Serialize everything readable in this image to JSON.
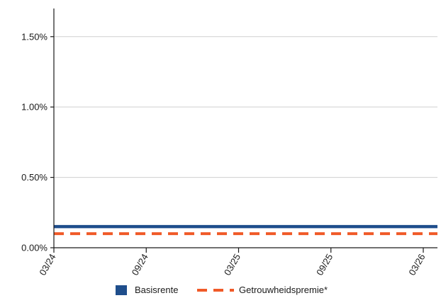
{
  "chart_data": {
    "type": "line",
    "x": [
      "03/24",
      "09/24",
      "03/25",
      "09/25",
      "03/26"
    ],
    "ylim": [
      0,
      1.7
    ],
    "y_ticks": [
      "0.00%",
      "0.50%",
      "1.00%",
      "1.50%"
    ],
    "y_tick_values": [
      0,
      0.5,
      1.0,
      1.5
    ],
    "grid": true,
    "legend": "bottom",
    "series": [
      {
        "name": "Basisrente",
        "values": [
          0.15,
          0.15,
          0.15,
          0.15,
          0.15
        ],
        "color": "#1f4e8c",
        "style": "solid"
      },
      {
        "name": "Getrouwheidspremie*",
        "values": [
          0.1,
          0.1,
          0.1,
          0.1,
          0.1
        ],
        "color": "#f05a28",
        "style": "dashed"
      }
    ]
  }
}
